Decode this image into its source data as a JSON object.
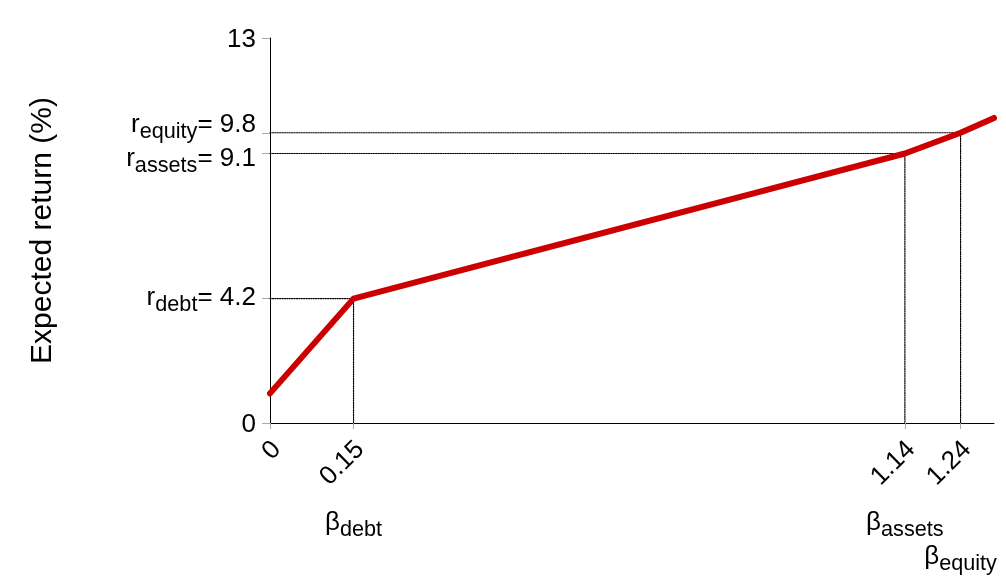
{
  "chart_data": {
    "type": "line",
    "ylabel": "Expected return (%)",
    "xlim": [
      0,
      1.3
    ],
    "xticks": [
      0,
      0.15,
      1.14,
      1.24
    ],
    "ylim": [
      0,
      13
    ],
    "yticks": [
      0,
      {
        "value": 4.2,
        "label": "r$_{debt}$= 4.2"
      },
      {
        "value": 9.1,
        "label": "r$_{assets}$= 9.1"
      },
      {
        "value": 9.8,
        "label": "r$_{equity}$= 9.8"
      },
      13
    ],
    "grid": false,
    "marker": "none",
    "series": [
      {
        "color": "#cc0000",
        "x": [
          0,
          0.15,
          1.14,
          1.24,
          1.3
        ],
        "values": [
          1,
          4.2,
          9.1,
          9.8,
          10.3
        ]
      },
      {
        "color": "#000000",
        "line_style": "dotted",
        "x": [
          0,
          0.15,
          0.15
        ],
        "values": [
          4.2,
          4.2,
          0
        ]
      },
      {
        "color": "#000000",
        "line_style": "dotted",
        "x": [
          0,
          1.14,
          1.14
        ],
        "values": [
          9.1,
          9.1,
          0
        ]
      },
      {
        "color": "#000000",
        "line_style": "dotted",
        "x": [
          0,
          1.24,
          1.24
        ],
        "values": [
          9.8,
          9.8,
          0
        ]
      }
    ],
    "annotations": [
      "β$_{debt}$",
      "β$_{assets}$",
      "β$_{equity}$"
    ]
  }
}
